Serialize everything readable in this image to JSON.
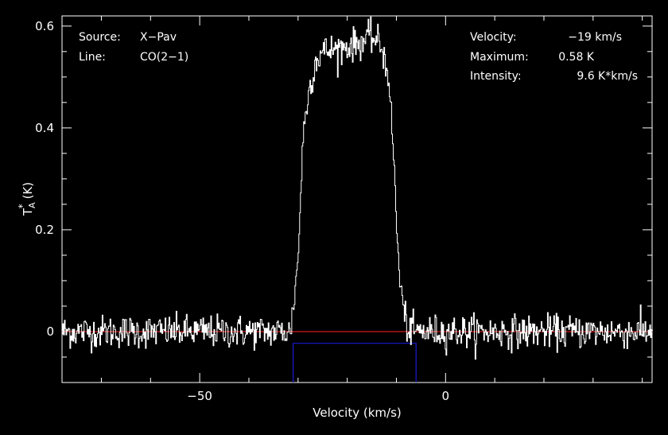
{
  "chart_data": {
    "type": "line",
    "xlabel": "Velocity (km/s)",
    "ylabel": "T",
    "ylabel_sub": "A",
    "ylabel_sup": "*",
    "ylabel_unit": "(K)",
    "xlim": [
      -78,
      42
    ],
    "ylim": [
      -0.1,
      0.62
    ],
    "x_ticks": [
      -50,
      0
    ],
    "x_tick_labels": [
      "−50",
      "0"
    ],
    "y_ticks": [
      0,
      0.2,
      0.4,
      0.6
    ],
    "y_tick_labels": [
      "0",
      "0.2",
      "0.4",
      "0.6"
    ],
    "grid": false,
    "info_left": [
      {
        "label": "Source:",
        "value": "X−Pav"
      },
      {
        "label": "Line:",
        "value": "CO(2−1)"
      }
    ],
    "info_right": [
      {
        "label": "Velocity:",
        "value": "−19 km/s"
      },
      {
        "label": "Maximum:",
        "value": "0.58 K"
      },
      {
        "label": "Intensity:",
        "value": "9.6 K*km/s"
      }
    ],
    "baseline": {
      "y": 0,
      "x": [
        -78,
        42
      ],
      "color": "#d11a1a"
    },
    "window": {
      "x": [
        -31,
        -6
      ],
      "y": -0.023,
      "color": "#1a1ad6"
    },
    "series": [
      {
        "color": "#ffffff",
        "noise_sigma": 0.016,
        "profile": [
          {
            "x": -78,
            "y": 0
          },
          {
            "x": -31.5,
            "y": 0
          },
          {
            "x": -30,
            "y": 0.14
          },
          {
            "x": -29,
            "y": 0.38
          },
          {
            "x": -28,
            "y": 0.46
          },
          {
            "x": -26.5,
            "y": 0.53
          },
          {
            "x": -25,
            "y": 0.55
          },
          {
            "x": -22,
            "y": 0.555
          },
          {
            "x": -18,
            "y": 0.565
          },
          {
            "x": -15,
            "y": 0.58
          },
          {
            "x": -13,
            "y": 0.56
          },
          {
            "x": -11.5,
            "y": 0.5
          },
          {
            "x": -10.5,
            "y": 0.33
          },
          {
            "x": -9.5,
            "y": 0.12
          },
          {
            "x": -8.5,
            "y": 0.04
          },
          {
            "x": -7.5,
            "y": 0
          },
          {
            "x": 42,
            "y": 0
          }
        ]
      }
    ]
  }
}
